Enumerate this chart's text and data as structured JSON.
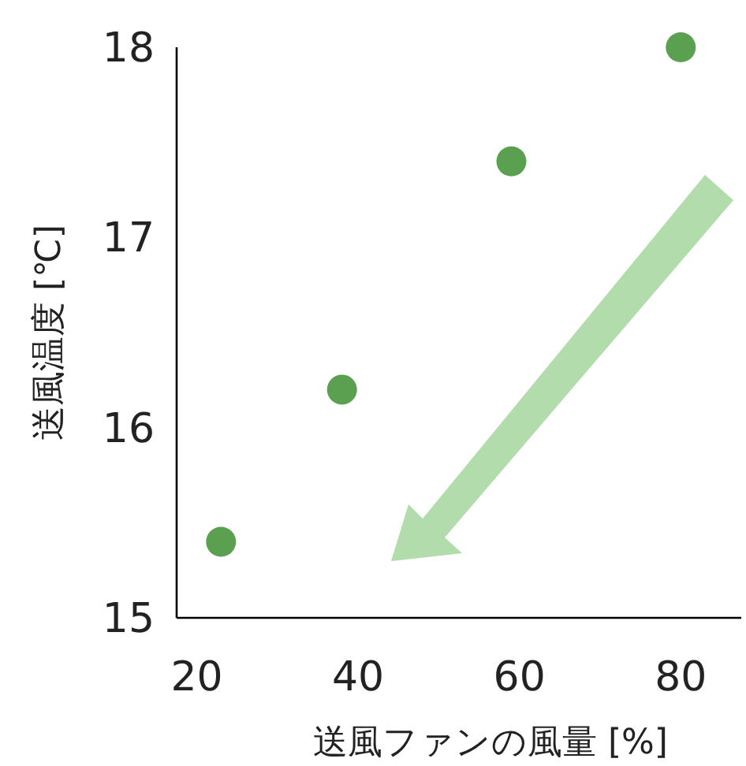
{
  "chart_data": {
    "type": "scatter",
    "xlabel": "送風ファンの風量 [%]",
    "ylabel": "送風温度 [℃]",
    "x": [
      23,
      38,
      59,
      80
    ],
    "series": [
      {
        "color": "#5aa050",
        "values": [
          15.4,
          16.2,
          17.4,
          18.0
        ]
      }
    ],
    "xlim": [
      17.5,
      87.5
    ],
    "xticks": [
      20,
      40,
      60,
      80
    ],
    "ylim": [
      15,
      18
    ],
    "yticks": [
      15,
      16,
      17,
      18
    ],
    "grid": false,
    "marker": "circle"
  }
}
